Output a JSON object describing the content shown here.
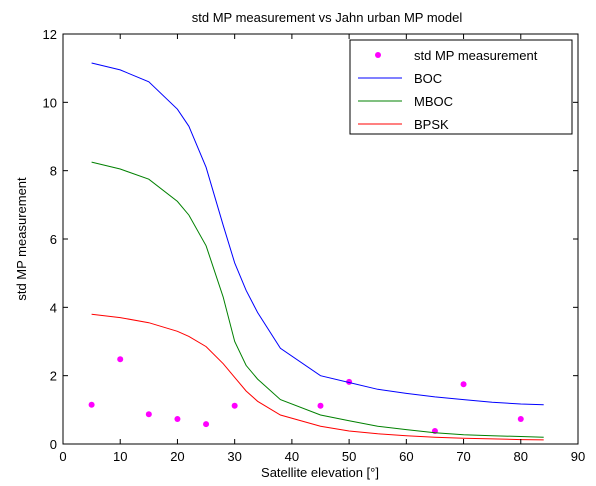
{
  "chart_data": {
    "type": "line",
    "title": "std MP measurement vs Jahn urban MP model",
    "xlabel": "Satellite elevation [°]",
    "ylabel": "std MP measurement",
    "xlim": [
      0,
      90
    ],
    "ylim": [
      0,
      12
    ],
    "xticks": [
      "0",
      "10",
      "20",
      "30",
      "40",
      "50",
      "60",
      "70",
      "80",
      "90"
    ],
    "yticks": [
      "0",
      "2",
      "4",
      "6",
      "8",
      "10",
      "12"
    ],
    "grid": false,
    "legend_position": "top-right",
    "series": [
      {
        "name": "std MP measurement",
        "kind": "scatter",
        "color": "#ff00ff",
        "x": [
          5,
          10,
          15,
          20,
          25,
          30,
          45,
          50,
          65,
          70,
          80
        ],
        "y": [
          1.15,
          2.48,
          0.87,
          0.73,
          0.58,
          1.12,
          1.12,
          1.82,
          0.38,
          1.75,
          0.73
        ]
      },
      {
        "name": "BOC",
        "kind": "line",
        "color": "#0000ff",
        "x": [
          5,
          10,
          15,
          20,
          22,
          25,
          28,
          30,
          32,
          34,
          38,
          45,
          50,
          55,
          60,
          65,
          70,
          75,
          80,
          84
        ],
        "y": [
          11.15,
          10.95,
          10.6,
          9.8,
          9.3,
          8.1,
          6.4,
          5.3,
          4.5,
          3.85,
          2.8,
          2.0,
          1.8,
          1.6,
          1.48,
          1.38,
          1.3,
          1.22,
          1.17,
          1.15
        ]
      },
      {
        "name": "MBOC",
        "kind": "line",
        "color": "#008000",
        "x": [
          5,
          10,
          15,
          20,
          22,
          25,
          28,
          30,
          32,
          34,
          38,
          45,
          50,
          55,
          60,
          65,
          70,
          75,
          80,
          84
        ],
        "y": [
          8.25,
          8.05,
          7.75,
          7.1,
          6.7,
          5.8,
          4.3,
          3.0,
          2.3,
          1.9,
          1.3,
          0.85,
          0.68,
          0.52,
          0.42,
          0.33,
          0.27,
          0.24,
          0.22,
          0.2
        ]
      },
      {
        "name": "BPSK",
        "kind": "line",
        "color": "#ff0000",
        "x": [
          5,
          10,
          15,
          20,
          22,
          25,
          28,
          30,
          32,
          34,
          38,
          45,
          50,
          55,
          60,
          65,
          70,
          75,
          80,
          84
        ],
        "y": [
          3.8,
          3.7,
          3.55,
          3.3,
          3.15,
          2.85,
          2.35,
          1.95,
          1.55,
          1.25,
          0.85,
          0.52,
          0.38,
          0.3,
          0.24,
          0.2,
          0.17,
          0.15,
          0.13,
          0.12
        ]
      }
    ]
  }
}
